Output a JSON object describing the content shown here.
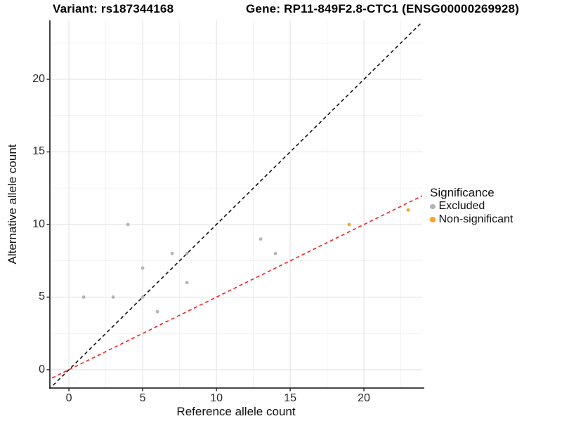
{
  "chart_data": {
    "type": "scatter",
    "titles": {
      "variant": "Variant: rs187344168",
      "gene": "Gene: RP11-849F2.8-CTC1 (ENSG00000269928)"
    },
    "xlabel": "Reference allele count",
    "ylabel": "Alternative allele count",
    "xlim": [
      -1.29,
      23.95
    ],
    "ylim": [
      -1.26,
      24.06
    ],
    "x_ticks": [
      0,
      5,
      10,
      15,
      20
    ],
    "y_ticks": [
      0,
      5,
      10,
      15,
      20
    ],
    "x_minor_ticks": [
      2.5,
      7.5,
      12.5,
      17.5,
      22.5
    ],
    "y_minor_ticks": [
      2.5,
      7.5,
      12.5,
      17.5,
      22.5
    ],
    "grid": true,
    "legend_position": "right",
    "series": [
      {
        "name": "Excluded",
        "color": "#b4b4b4",
        "points": [
          [
            1,
            5
          ],
          [
            3,
            5
          ],
          [
            4,
            10
          ],
          [
            5,
            5
          ],
          [
            5,
            7
          ],
          [
            6,
            4
          ],
          [
            7,
            8
          ],
          [
            8,
            6
          ],
          [
            8,
            8
          ],
          [
            13,
            9
          ],
          [
            14,
            8
          ]
        ]
      },
      {
        "name": "Non-significant",
        "color": "#f8a12c",
        "points": [
          [
            19,
            10
          ],
          [
            23,
            11
          ]
        ]
      }
    ],
    "ablines": [
      {
        "name": "identity-line",
        "slope": 1,
        "intercept": 0,
        "color": "#111111",
        "style": "dashed"
      },
      {
        "name": "half-ratio-line",
        "slope": 0.5,
        "intercept": 0,
        "color": "#f81e1e",
        "style": "dashed"
      }
    ],
    "legend": {
      "title": "Significance",
      "items": [
        {
          "label": "Excluded",
          "color": "#b4b4b4"
        },
        {
          "label": "Non-significant",
          "color": "#f8a12c"
        }
      ]
    },
    "colors": {
      "grid_major": "#e3e3e3",
      "grid_minor": "#f1f1f1",
      "axis_line": "#2e2e2e",
      "background": "#ffffff"
    }
  }
}
